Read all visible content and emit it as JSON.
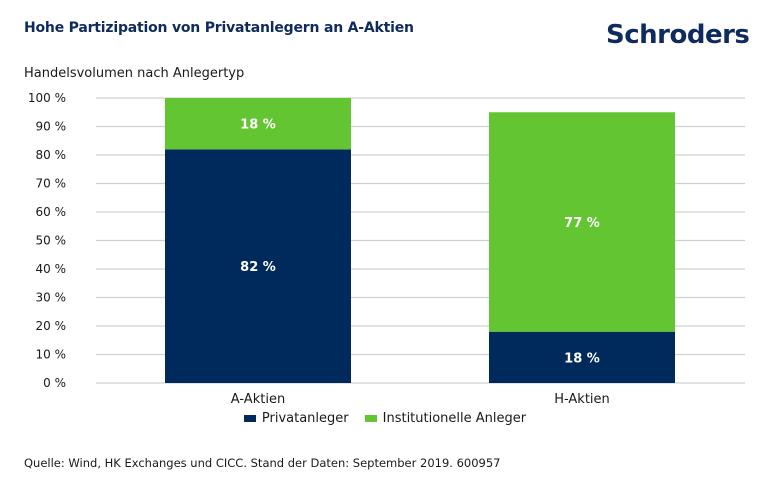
{
  "header": {
    "title": "Hohe Partizipation von Privatanlegern an A-Aktien",
    "logo": "Schroders",
    "subtitle": "Handelsvolumen nach Anlegertyp"
  },
  "footer": {
    "source": "Quelle: Wind, HK Exchanges und CICC. Stand der Daten: September 2019. 600957"
  },
  "colors": {
    "privat": "#002a5c",
    "institutionell": "#64c532",
    "grid": "#d0d0d0",
    "title": "#0f2a5e"
  },
  "chart_data": {
    "type": "bar",
    "stacked": true,
    "title": "Hohe Partizipation von Privatanlegern an A-Aktien",
    "ylabel": "Handelsvolumen nach Anlegertyp",
    "xlabel": "",
    "categories": [
      "A-Aktien",
      "H-Aktien"
    ],
    "series": [
      {
        "name": "Privatanleger",
        "values": [
          82,
          18
        ],
        "labels": [
          "82 %",
          "18 %"
        ],
        "color": "#002a5c"
      },
      {
        "name": "Institutionelle Anleger",
        "values": [
          18,
          77
        ],
        "labels": [
          "18 %",
          "77 %"
        ],
        "color": "#64c532"
      }
    ],
    "ylim": [
      0,
      100
    ],
    "yticks": [
      0,
      10,
      20,
      30,
      40,
      50,
      60,
      70,
      80,
      90,
      100
    ],
    "ytick_labels": [
      "0 %",
      "10 %",
      "20 %",
      "30 %",
      "40 %",
      "50 %",
      "60 %",
      "70 %",
      "80 %",
      "90 %",
      "100 %"
    ],
    "grid": true,
    "legend_position": "bottom-center"
  }
}
